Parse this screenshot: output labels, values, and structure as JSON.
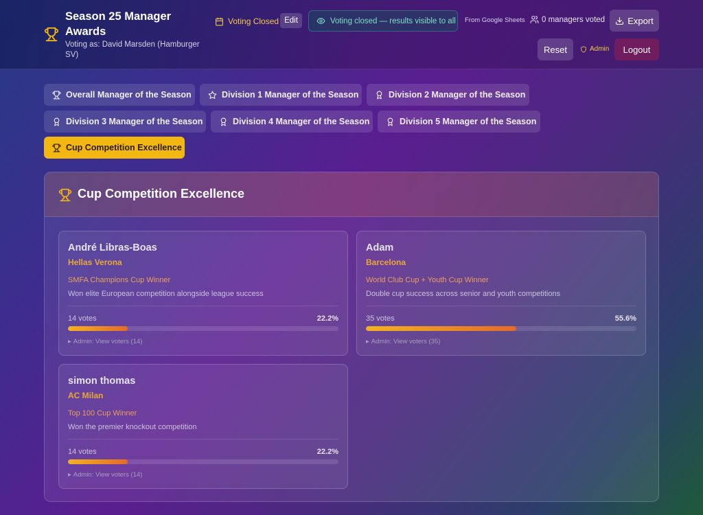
{
  "header": {
    "title": "Season 25 Manager Awards",
    "subtitle": "Voting as: David Marsden (Hamburger SV)",
    "status_label": "Voting Closed",
    "edit_label": "Edit",
    "banner_text": "Voting closed — results visible to all",
    "source_text": "From Google Sheets",
    "managers_text": "0 managers voted",
    "export_label": "Export",
    "reset_label": "Reset",
    "admin_label": "Admin",
    "logout_label": "Logout"
  },
  "tabs": [
    {
      "label": "Overall Manager of the Season",
      "icon": "trophy-icon",
      "active": false
    },
    {
      "label": "Division 1 Manager of the Season",
      "icon": "star-icon",
      "active": false
    },
    {
      "label": "Division 2 Manager of the Season",
      "icon": "award-icon",
      "active": false
    },
    {
      "label": "Division 3 Manager of the Season",
      "icon": "award-icon",
      "active": false
    },
    {
      "label": "Division 4 Manager of the Season",
      "icon": "award-icon",
      "active": false
    },
    {
      "label": "Division 5 Manager of the Season",
      "icon": "award-icon",
      "active": false
    },
    {
      "label": "Cup Competition Excellence",
      "icon": "trophy-icon",
      "active": true
    }
  ],
  "panel": {
    "title": "Cup Competition Excellence",
    "nominees": [
      {
        "name": "André Libras-Boas",
        "club": "Hellas Verona",
        "award": "SMFA Champions Cup Winner",
        "description": "Won elite European competition alongside league success",
        "votes": "14 votes",
        "percent": "22.2%",
        "share": 0.222,
        "voters": "Admin: View voters (14)"
      },
      {
        "name": "Adam",
        "club": "Barcelona",
        "award": "World Club Cup + Youth Cup Winner",
        "description": "Double cup success across senior and youth competitions",
        "votes": "35 votes",
        "percent": "55.6%",
        "share": 0.556,
        "voters": "Admin: View voters (35)"
      },
      {
        "name": "simon thomas",
        "club": "AC Milan",
        "award": "Top 100 Cup Winner",
        "description": "Won the premier knockout competition",
        "votes": "14 votes",
        "percent": "22.2%",
        "share": 0.222,
        "voters": "Admin: View voters (14)"
      }
    ]
  },
  "colors": {
    "accent": "#f2b711",
    "banner_text": "#7fe0c4",
    "club_text": "#e9a73a",
    "logout_bg": "#961e50"
  }
}
